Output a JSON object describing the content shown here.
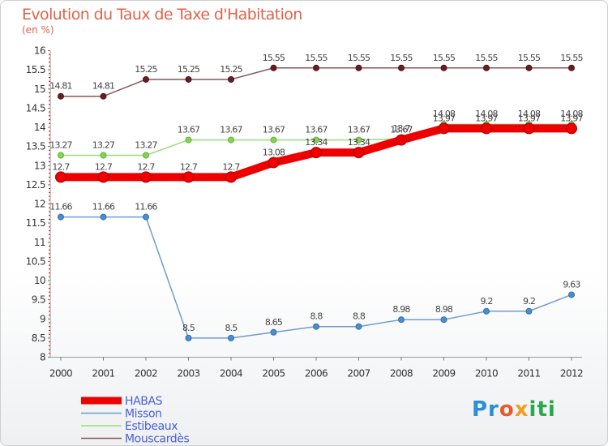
{
  "chart_data": {
    "type": "line",
    "title": "Evolution du Taux de Taxe d'Habitation",
    "subtitle": "(en %)",
    "x": [
      "2000",
      "2001",
      "2002",
      "2003",
      "2004",
      "2005",
      "2006",
      "2007",
      "2008",
      "2009",
      "2010",
      "2011",
      "2012"
    ],
    "ylim": [
      8,
      16
    ],
    "yticks": [
      "8",
      "8.5",
      "9",
      "9.5",
      "10",
      "10.5",
      "11",
      "11.5",
      "12",
      "12.5",
      "13",
      "13.5",
      "14",
      "14.5",
      "15",
      "15.5",
      "16"
    ],
    "grid": false,
    "legend_position": "bottom-left",
    "series": [
      {
        "name": "HABAS",
        "color": "#ee0000",
        "values": [
          12.7,
          12.7,
          12.7,
          12.7,
          12.7,
          13.08,
          13.34,
          13.34,
          13.67,
          13.97,
          13.97,
          13.97,
          13.97
        ],
        "labels": [
          "12.7",
          "12.7",
          "12.7",
          "12.7",
          "12.7",
          "13.08",
          "13.34",
          "13.34",
          "13.67",
          "13.97",
          "13.97",
          "13.97",
          "13.97"
        ]
      },
      {
        "name": "Misson",
        "color": "#6f9ccc",
        "values": [
          11.66,
          11.66,
          11.66,
          8.5,
          8.5,
          8.65,
          8.8,
          8.8,
          8.98,
          8.98,
          9.2,
          9.2,
          9.63
        ],
        "labels": [
          "11.66",
          "11.66",
          "11.66",
          "8.5",
          "8.5",
          "8.65",
          "8.8",
          "8.8",
          "8.98",
          "8.98",
          "9.2",
          "9.2",
          "9.63"
        ]
      },
      {
        "name": "Estibeaux",
        "color": "#99dd77",
        "values": [
          13.27,
          13.27,
          13.27,
          13.67,
          13.67,
          13.67,
          13.67,
          13.67,
          13.7,
          14.08,
          14.08,
          14.08,
          14.08
        ],
        "labels": [
          "13.27",
          "13.27",
          "13.27",
          "13.67",
          "13.67",
          "13.67",
          "13.67",
          "13.67",
          "13.7",
          "14.08",
          "14.08",
          "14.08",
          "14.08"
        ]
      },
      {
        "name": "Mouscardès",
        "color": "#885555",
        "values": [
          14.81,
          14.81,
          15.25,
          15.25,
          15.25,
          15.55,
          15.55,
          15.55,
          15.55,
          15.55,
          15.55,
          15.55,
          15.55
        ],
        "labels": [
          "14.81",
          "14.81",
          "15.25",
          "15.25",
          "15.25",
          "15.55",
          "15.55",
          "15.55",
          "15.55",
          "15.55",
          "15.55",
          "15.55",
          "15.55"
        ]
      }
    ]
  },
  "brand": {
    "logo_text": [
      "Pr",
      "o",
      "x",
      "iti"
    ]
  }
}
